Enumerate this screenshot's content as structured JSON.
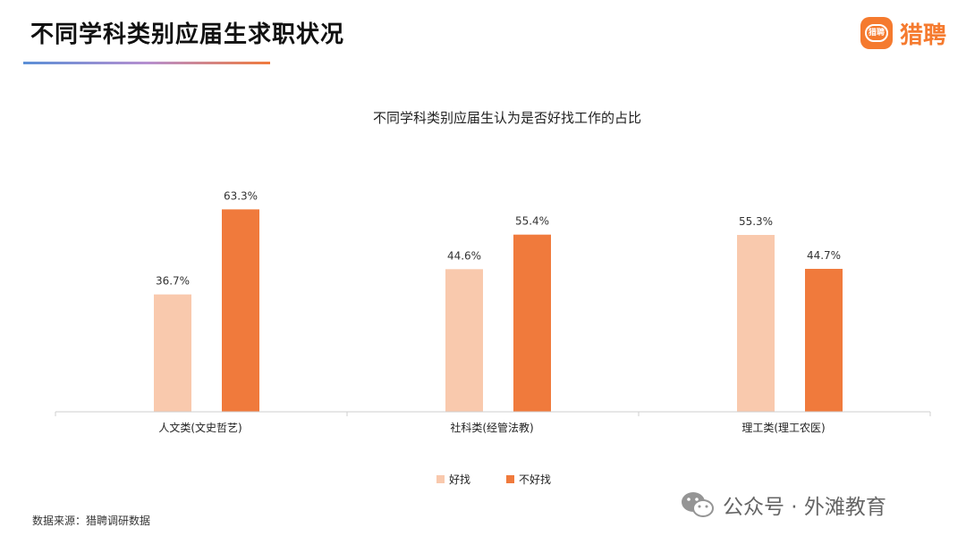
{
  "header": {
    "title": "不同学科类别应届生求职状况",
    "brand_name": "猎聘",
    "brand_icon_text": "猎聘"
  },
  "chart_data": {
    "type": "bar",
    "title": "不同学科类别应届生认为是否好找工作的占比",
    "categories": [
      "人文类(文史哲艺)",
      "社科类(经管法教)",
      "理工类(理工农医)"
    ],
    "series": [
      {
        "name": "好找",
        "values": [
          36.7,
          44.6,
          55.3
        ],
        "color": "#f9c9ad"
      },
      {
        "name": "不好找",
        "values": [
          63.3,
          55.4,
          44.7
        ],
        "color": "#f07a3c"
      }
    ],
    "value_labels": [
      [
        "36.7%",
        "44.6%",
        "55.3%"
      ],
      [
        "63.3%",
        "55.4%",
        "44.7%"
      ]
    ],
    "unit": "%",
    "ylim": [
      0,
      100
    ],
    "grid": false,
    "legend_position": "bottom-center"
  },
  "footer": {
    "source": "数据来源：猎聘调研数据",
    "watermark": "公众号 · 外滩教育",
    "watermark_icon": "wechat-icon"
  }
}
